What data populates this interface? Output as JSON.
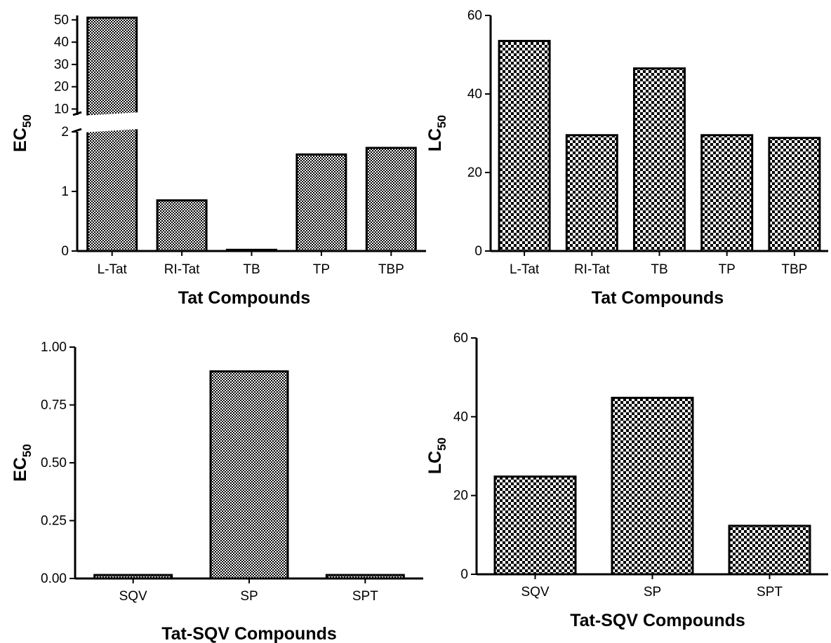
{
  "chart_data": [
    {
      "type": "bar",
      "xlabel": "Tat Compounds",
      "ylabel": "EC",
      "ylabel_sub": "50",
      "categories": [
        "L-Tat",
        "RI-Tat",
        "TB",
        "TP",
        "TBP"
      ],
      "values": [
        51,
        0.85,
        0.02,
        1.62,
        1.73
      ],
      "ylim": [
        0,
        50
      ],
      "axis_break": {
        "lower_range": [
          0,
          2
        ],
        "upper_range": [
          7,
          52
        ]
      },
      "yticks_lower": [
        "0",
        "1",
        "2"
      ],
      "yticks_upper": [
        "10",
        "20",
        "30",
        "40",
        "50"
      ],
      "pattern": "fine-checker"
    },
    {
      "type": "bar",
      "xlabel": "Tat Compounds",
      "ylabel": "LC",
      "ylabel_sub": "50",
      "categories": [
        "L-Tat",
        "RI-Tat",
        "TB",
        "TP",
        "TBP"
      ],
      "values": [
        53.5,
        29.5,
        46.5,
        29.5,
        28.8
      ],
      "ylim": [
        0,
        60
      ],
      "yticks": [
        "0",
        "20",
        "40",
        "60"
      ],
      "pattern": "coarse-checker"
    },
    {
      "type": "bar",
      "xlabel": "Tat-SQV Compounds",
      "ylabel": "EC",
      "ylabel_sub": "50",
      "categories": [
        "SQV",
        "SP",
        "SPT"
      ],
      "values": [
        0.015,
        0.895,
        0.015
      ],
      "ylim": [
        0,
        1
      ],
      "yticks": [
        "0.00",
        "0.25",
        "0.50",
        "0.75",
        "1.00"
      ],
      "pattern": "fine-checker"
    },
    {
      "type": "bar",
      "xlabel": "Tat-SQV Compounds",
      "ylabel": "LC",
      "ylabel_sub": "50",
      "categories": [
        "SQV",
        "SP",
        "SPT"
      ],
      "values": [
        24.8,
        44.8,
        12.3
      ],
      "ylim": [
        0,
        60
      ],
      "yticks": [
        "0",
        "20",
        "40",
        "60"
      ],
      "pattern": "coarse-checker"
    }
  ]
}
